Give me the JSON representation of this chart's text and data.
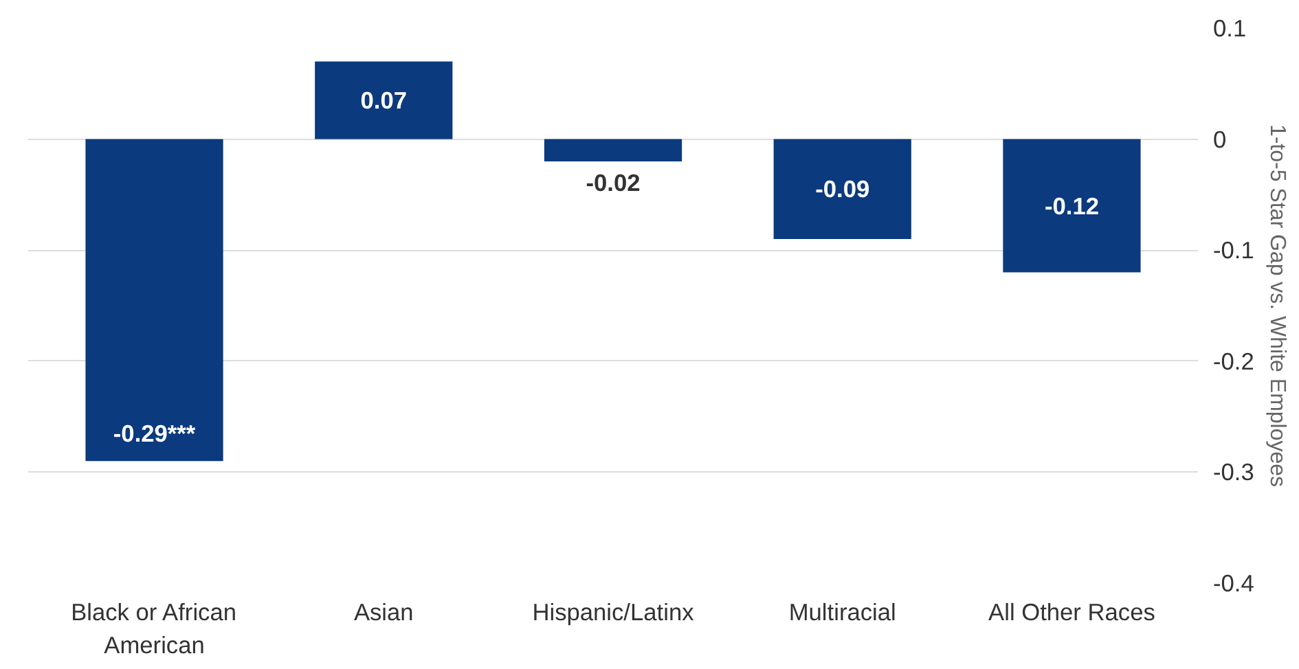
{
  "chart_data": {
    "type": "bar",
    "ylabel": "1-to-5 Star Gap vs. White Employees",
    "categories": [
      "Black or African American",
      "Asian",
      "Hispanic/Latinx",
      "Multiracial",
      "All Other Races"
    ],
    "values": [
      -0.29,
      0.07,
      -0.02,
      -0.09,
      -0.12
    ],
    "value_labels": [
      "-0.29***",
      "0.07",
      "-0.02",
      "-0.09",
      "-0.12"
    ],
    "color": "#0b3a7e",
    "ylim": [
      -0.4,
      0.1
    ],
    "yticks": [
      0.1,
      0,
      -0.1,
      -0.2,
      -0.3,
      -0.4
    ],
    "grid": "y"
  }
}
